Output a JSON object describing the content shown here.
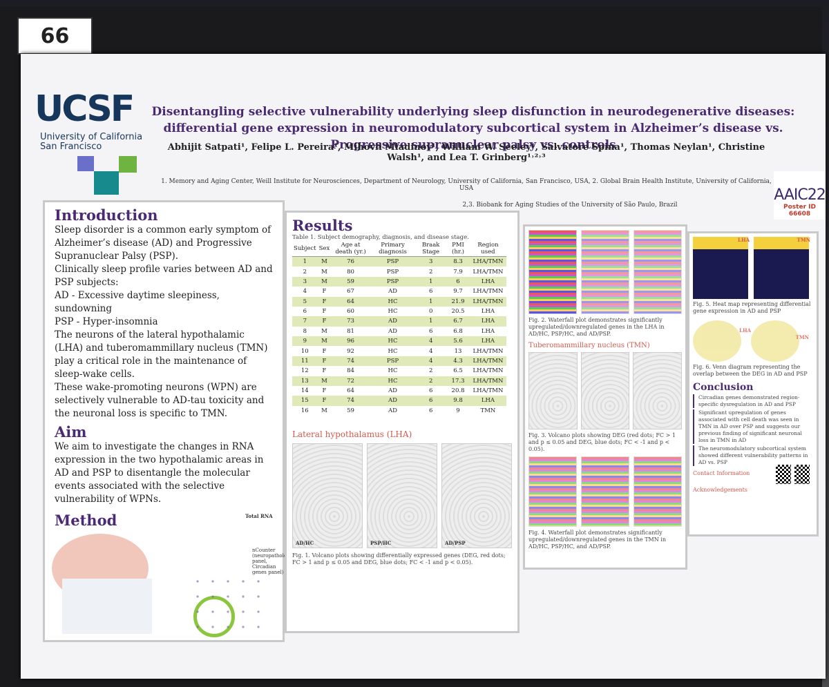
{
  "board_number": "66",
  "header": {
    "logo": "UCSF",
    "university": [
      "University of California",
      "San Francisco"
    ],
    "title": "Disentangling selective vulnerability underlying sleep disfunction in neurodegenerative diseases: differential gene expression in neuromodulatory subcortical system in Alzheimer’s disease vs. Progressive supranuclear palsy vs. controls",
    "authors": "Abhijit Satpati¹, Felipe L. Pereira¹, Mihovil Mladinov¹, William W. Seeley¹, Salvatore Spina¹, Thomas Neylan¹, Christine Walsh¹, and Lea T. Grinberg¹˒²˒³",
    "affiliations": [
      "1. Memory and Aging Center, Weill Institute for Neurosciences, Department of Neurology, University of California, San Francisco, USA, 2. Global Brain Health Institute, University of California, USA",
      "2,3. Biobank for Aging Studies of the University of São Paulo, Brazil"
    ],
    "conference": "AAIC22",
    "poster_id": "Poster ID 66608"
  },
  "introduction": {
    "heading": "Introduction",
    "paragraphs": [
      "Sleep disorder is a common early symptom of Alzheimer’s disease (AD) and Progressive Supranuclear Palsy (PSP).",
      "Clinically sleep profile varies between AD and PSP subjects:",
      "AD - Excessive daytime sleepiness, sundowning",
      "PSP - Hyper-insomnia",
      "The neurons of the lateral hypothalamic (LHA) and tuberomammillary nucleus (TMN) play a critical role in the maintenance of sleep-wake cells.",
      "These wake-promoting neurons (WPN) are selectively vulnerable to AD-tau toxicity and the neuronal loss is specific to TMN."
    ]
  },
  "aim": {
    "heading": "Aim",
    "text": "We aim to investigate the changes in RNA expression in the two hypothalamic areas in AD and PSP to disentangle the molecular events associated with the selective vulnerability of WPNs."
  },
  "method": {
    "heading": "Method",
    "labels": [
      "Total RNA",
      "nCounter (neuropathology panel, Circadian genes panel)"
    ]
  },
  "results": {
    "heading": "Results",
    "table": {
      "caption": "Table 1. Subject demography, diagnosis, and disease stage.",
      "headers": [
        "Subject",
        "Sex",
        "Age at death (yr.)",
        "Primary diagnosis",
        "Braak Stage",
        "PMI (hr.)",
        "Region used"
      ],
      "rows": [
        [
          "1",
          "M",
          "76",
          "PSP",
          "3",
          "8.3",
          "LHA/TMN"
        ],
        [
          "2",
          "M",
          "80",
          "PSP",
          "2",
          "7.9",
          "LHA/TMN"
        ],
        [
          "3",
          "M",
          "59",
          "PSP",
          "1",
          "6",
          "LHA"
        ],
        [
          "4",
          "F",
          "67",
          "AD",
          "6",
          "9.7",
          "LHA/TMN"
        ],
        [
          "5",
          "F",
          "64",
          "HC",
          "1",
          "21.9",
          "LHA/TMN"
        ],
        [
          "6",
          "F",
          "60",
          "HC",
          "0",
          "20.5",
          "LHA"
        ],
        [
          "7",
          "F",
          "73",
          "AD",
          "1",
          "6.7",
          "LHA"
        ],
        [
          "8",
          "M",
          "81",
          "AD",
          "6",
          "6.8",
          "LHA"
        ],
        [
          "9",
          "M",
          "96",
          "HC",
          "4",
          "5.6",
          "LHA"
        ],
        [
          "10",
          "F",
          "92",
          "HC",
          "4",
          "13",
          "LHA/TMN"
        ],
        [
          "11",
          "F",
          "74",
          "PSP",
          "4",
          "4.3",
          "LHA/TMN"
        ],
        [
          "12",
          "F",
          "84",
          "HC",
          "2",
          "6.5",
          "LHA/TMN"
        ],
        [
          "13",
          "M",
          "72",
          "HC",
          "2",
          "17.3",
          "LHA/TMN"
        ],
        [
          "14",
          "F",
          "64",
          "AD",
          "6",
          "20.8",
          "LHA/TMN"
        ],
        [
          "15",
          "F",
          "74",
          "AD",
          "6",
          "9.8",
          "LHA"
        ],
        [
          "16",
          "M",
          "59",
          "AD",
          "6",
          "9",
          "TMN"
        ]
      ]
    },
    "lha_heading": "Lateral hypothalamus (LHA)",
    "panels": [
      "AD/HC",
      "PSP/HC",
      "AD/PSP"
    ],
    "fig1": "Fig. 1. Volcano plots showing differentially expressed genes (DEG, red dots; FC > 1 and p ≤ 0.05 and DEG, blue dots; FC < -1 and p < 0.05).",
    "fig2": "Fig. 2. Waterfall plot demonstrates significantly upregulated/downregulated genes in the LHA in AD/HC, PSP/HC, and AD/PSP.",
    "tmn_heading": "Tuberomammillary nucleus (TMN)",
    "fig3": "Fig. 3. Volcano plots showing DEG (red dots; FC > 1 and p ≤ 0.05 and DEG, blue dots; FC < -1 and p < 0.05).",
    "fig4": "Fig. 4. Waterfall plot demonstrates significantly upregulated/downregulated genes in the TMN in AD/HC, PSP/HC, and AD/PSP.",
    "region_labels": [
      "LHA",
      "TMN"
    ],
    "fig5": "Fig. 5. Heat map representing differential gene expression in AD and PSP",
    "fig6": "Fig. 6. Venn diagram representing the overlap between the DEG in AD and PSP"
  },
  "conclusion": {
    "heading": "Conclusion",
    "bullets": [
      "Circadian genes demonstrated region-specific dysregulation in AD and PSP",
      "Significant upregulation of genes associated with cell death was seen in TMN in AD over PSP and suggests our previous finding of significant neuronal loss in TMN in AD",
      "The neuromodulatory subcortical system showed different vulnerability patterns in AD vs. PSP"
    ],
    "contact": "Contact Information",
    "acknowledgements": "Acknowledgements"
  }
}
